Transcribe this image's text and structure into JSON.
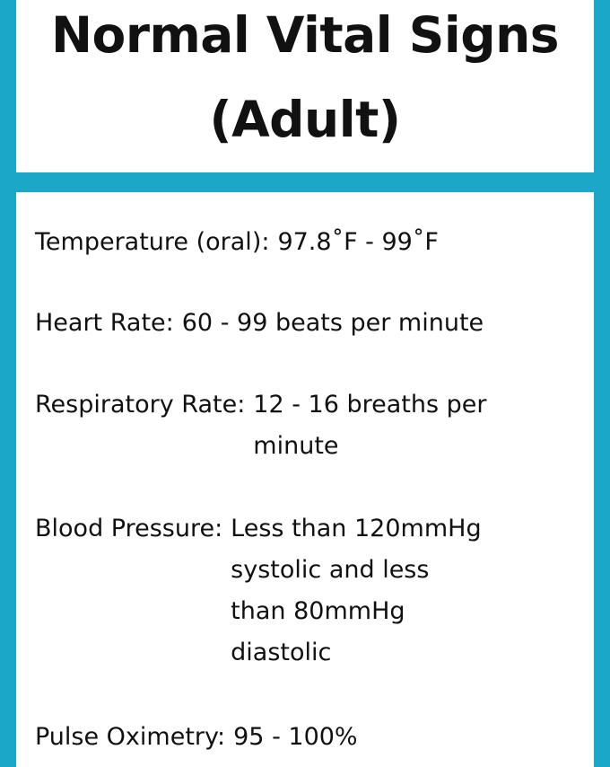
{
  "title": {
    "line1": "Normal Vital Signs",
    "line2": "(Adult)"
  },
  "vitals": {
    "temperature": {
      "label": "Temperature (oral):",
      "value": [
        "97.8˚F - 99˚F"
      ]
    },
    "heart_rate": {
      "label": "Heart Rate:",
      "value": [
        "60 - 99 beats per minute"
      ]
    },
    "respiratory_rate": {
      "label": "Respiratory Rate:",
      "value": [
        "12 - 16 breaths per",
        "minute"
      ]
    },
    "blood_pressure": {
      "label": "Blood Pressure:",
      "value": [
        "Less than 120mmHg",
        "systolic and less",
        "than 80mmHg",
        "diastolic"
      ]
    },
    "pulse_oximetry": {
      "label": "Pulse Oximetry:",
      "value": [
        "95 - 100%"
      ]
    }
  },
  "colors": {
    "border": "#1aa7c8",
    "panel": "#ffffff",
    "text": "#111111"
  }
}
